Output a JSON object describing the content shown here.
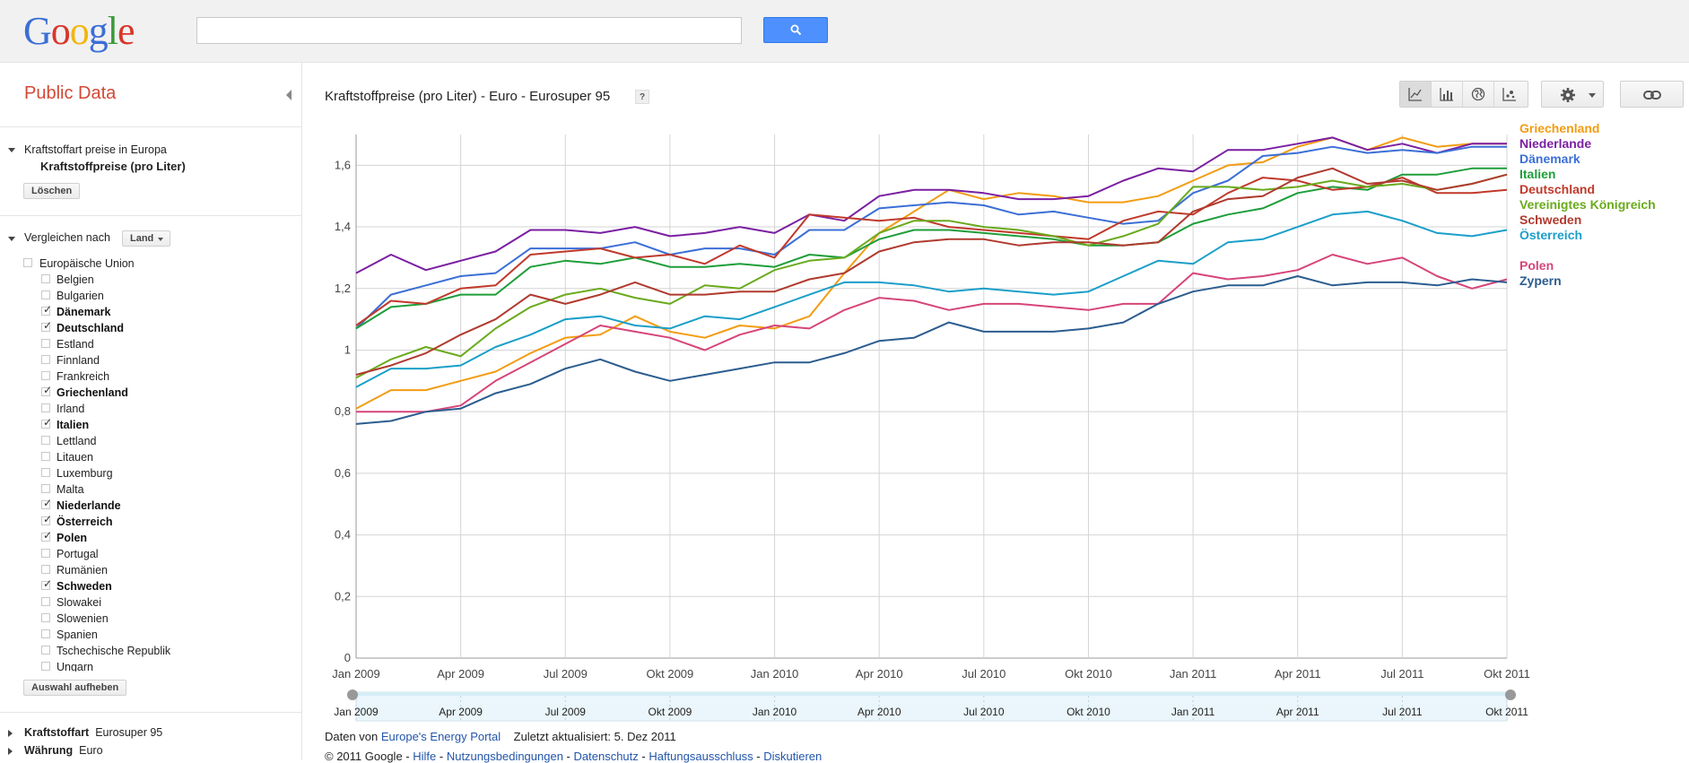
{
  "header": {
    "logo": [
      "G",
      "o",
      "o",
      "g",
      "l",
      "e"
    ],
    "search_value": ""
  },
  "sidebar": {
    "title": "Public Data",
    "dataset_heading": "Kraftstoffart preise in Europa",
    "dataset_metric": "Kraftstoffpreise (pro Liter)",
    "clear_button": "Löschen",
    "compare_label": "Vergleichen nach",
    "compare_dropdown": "Land",
    "countries": [
      {
        "name": "Europäische Union",
        "checked": false,
        "level": 0
      },
      {
        "name": "Belgien",
        "checked": false,
        "level": 1
      },
      {
        "name": "Bulgarien",
        "checked": false,
        "level": 1
      },
      {
        "name": "Dänemark",
        "checked": true,
        "level": 1
      },
      {
        "name": "Deutschland",
        "checked": true,
        "level": 1
      },
      {
        "name": "Estland",
        "checked": false,
        "level": 1
      },
      {
        "name": "Finnland",
        "checked": false,
        "level": 1
      },
      {
        "name": "Frankreich",
        "checked": false,
        "level": 1
      },
      {
        "name": "Griechenland",
        "checked": true,
        "level": 1
      },
      {
        "name": "Irland",
        "checked": false,
        "level": 1
      },
      {
        "name": "Italien",
        "checked": true,
        "level": 1
      },
      {
        "name": "Lettland",
        "checked": false,
        "level": 1
      },
      {
        "name": "Litauen",
        "checked": false,
        "level": 1
      },
      {
        "name": "Luxemburg",
        "checked": false,
        "level": 1
      },
      {
        "name": "Malta",
        "checked": false,
        "level": 1
      },
      {
        "name": "Niederlande",
        "checked": true,
        "level": 1
      },
      {
        "name": "Österreich",
        "checked": true,
        "level": 1
      },
      {
        "name": "Polen",
        "checked": true,
        "level": 1
      },
      {
        "name": "Portugal",
        "checked": false,
        "level": 1
      },
      {
        "name": "Rumänien",
        "checked": false,
        "level": 1
      },
      {
        "name": "Schweden",
        "checked": true,
        "level": 1
      },
      {
        "name": "Slowakei",
        "checked": false,
        "level": 1
      },
      {
        "name": "Slowenien",
        "checked": false,
        "level": 1
      },
      {
        "name": "Spanien",
        "checked": false,
        "level": 1
      },
      {
        "name": "Tschechische Republik",
        "checked": false,
        "level": 1
      },
      {
        "name": "Ungarn",
        "checked": false,
        "level": 1
      }
    ],
    "deselect_button": "Auswahl aufheben",
    "filters": [
      {
        "label": "Kraftstoffart",
        "value": "Eurosuper 95"
      },
      {
        "label": "Währung",
        "value": "Euro"
      }
    ]
  },
  "main": {
    "title": "Kraftstoffpreise (pro Liter) - Euro - Eurosuper 95",
    "help": "?",
    "view_icons": [
      "line-chart-icon",
      "bar-chart-icon",
      "map-icon",
      "bubble-chart-icon"
    ],
    "footer": {
      "source_prefix": "Daten von",
      "source_link": "Europe's Energy Portal",
      "updated": "Zuletzt aktualisiert: 5. Dez 2011",
      "copyright": "© 2011 Google -",
      "links": [
        "Hilfe",
        "Nutzungsbedingungen",
        "Datenschutz",
        "Haftungsausschluss",
        "Diskutieren"
      ]
    }
  },
  "chart_data": {
    "type": "line",
    "title": "Kraftstoffpreise (pro Liter) - Euro - Eurosuper 95",
    "x": [
      "Jan 2009",
      "Feb 2009",
      "Mär 2009",
      "Apr 2009",
      "Mai 2009",
      "Jun 2009",
      "Jul 2009",
      "Aug 2009",
      "Sep 2009",
      "Okt 2009",
      "Nov 2009",
      "Dez 2009",
      "Jan 2010",
      "Feb 2010",
      "Mär 2010",
      "Apr 2010",
      "Mai 2010",
      "Jun 2010",
      "Jul 2010",
      "Aug 2010",
      "Sep 2010",
      "Okt 2010",
      "Nov 2010",
      "Dez 2010",
      "Jan 2011",
      "Feb 2011",
      "Mär 2011",
      "Apr 2011",
      "Mai 2011",
      "Jun 2011",
      "Jul 2011",
      "Aug 2011",
      "Sep 2011",
      "Okt 2011"
    ],
    "x_tick_labels": [
      "Jan 2009",
      "Apr 2009",
      "Jul 2009",
      "Okt 2009",
      "Jan 2010",
      "Apr 2010",
      "Jul 2010",
      "Okt 2010",
      "Jan 2011",
      "Apr 2011",
      "Jul 2011",
      "Okt 2011"
    ],
    "y_tick_labels": [
      "0",
      "0,2",
      "0,4",
      "0,6",
      "0,8",
      "1",
      "1,2",
      "1,4",
      "1,6"
    ],
    "ylim": [
      0,
      1.7
    ],
    "grid": true,
    "legend_position": "right",
    "series": [
      {
        "name": "Griechenland",
        "color": "#f39c12",
        "values": [
          0.81,
          0.87,
          0.87,
          0.9,
          0.93,
          0.99,
          1.04,
          1.05,
          1.11,
          1.06,
          1.04,
          1.08,
          1.07,
          1.11,
          1.25,
          1.38,
          1.45,
          1.52,
          1.49,
          1.51,
          1.5,
          1.48,
          1.48,
          1.5,
          1.55,
          1.6,
          1.61,
          1.66,
          1.69,
          1.65,
          1.69,
          1.66,
          1.67,
          1.67
        ]
      },
      {
        "name": "Niederlande",
        "color": "#7b1fa2",
        "values": [
          1.25,
          1.31,
          1.26,
          1.29,
          1.32,
          1.39,
          1.39,
          1.38,
          1.4,
          1.37,
          1.38,
          1.4,
          1.38,
          1.44,
          1.42,
          1.5,
          1.52,
          1.52,
          1.51,
          1.49,
          1.49,
          1.5,
          1.55,
          1.59,
          1.58,
          1.65,
          1.65,
          1.67,
          1.69,
          1.65,
          1.67,
          1.64,
          1.67,
          1.67
        ]
      },
      {
        "name": "Dänemark",
        "color": "#3b6fd6",
        "values": [
          1.07,
          1.18,
          1.21,
          1.24,
          1.25,
          1.33,
          1.33,
          1.33,
          1.35,
          1.31,
          1.33,
          1.33,
          1.31,
          1.39,
          1.39,
          1.46,
          1.47,
          1.48,
          1.47,
          1.44,
          1.45,
          1.43,
          1.41,
          1.42,
          1.51,
          1.55,
          1.63,
          1.64,
          1.66,
          1.64,
          1.65,
          1.64,
          1.66,
          1.66
        ]
      },
      {
        "name": "Italien",
        "color": "#1e9e3a",
        "values": [
          1.07,
          1.14,
          1.15,
          1.18,
          1.18,
          1.27,
          1.29,
          1.28,
          1.3,
          1.27,
          1.27,
          1.28,
          1.27,
          1.31,
          1.3,
          1.36,
          1.39,
          1.39,
          1.38,
          1.37,
          1.36,
          1.34,
          1.34,
          1.35,
          1.41,
          1.44,
          1.46,
          1.51,
          1.53,
          1.52,
          1.57,
          1.57,
          1.59,
          1.59
        ]
      },
      {
        "name": "Deutschland",
        "color": "#c0392b",
        "values": [
          1.08,
          1.16,
          1.15,
          1.2,
          1.21,
          1.31,
          1.32,
          1.33,
          1.3,
          1.31,
          1.28,
          1.34,
          1.3,
          1.44,
          1.43,
          1.42,
          1.43,
          1.4,
          1.39,
          1.38,
          1.37,
          1.36,
          1.42,
          1.45,
          1.44,
          1.51,
          1.56,
          1.55,
          1.52,
          1.53,
          1.56,
          1.51,
          1.51,
          1.52
        ]
      },
      {
        "name": "Vereinigtes Königreich",
        "color": "#6aaa1c",
        "values": [
          0.91,
          0.97,
          1.01,
          0.98,
          1.07,
          1.14,
          1.18,
          1.2,
          1.17,
          1.15,
          1.21,
          1.2,
          1.26,
          1.29,
          1.3,
          1.38,
          1.42,
          1.42,
          1.4,
          1.39,
          1.37,
          1.34,
          1.37,
          1.41,
          1.53,
          1.53,
          1.52,
          1.53,
          1.55,
          1.53,
          1.54,
          1.52,
          1.54,
          1.57
        ]
      },
      {
        "name": "Schweden",
        "color": "#b03a2e",
        "values": [
          0.92,
          0.95,
          0.99,
          1.05,
          1.1,
          1.18,
          1.15,
          1.18,
          1.22,
          1.18,
          1.18,
          1.19,
          1.19,
          1.23,
          1.25,
          1.32,
          1.35,
          1.36,
          1.36,
          1.34,
          1.35,
          1.35,
          1.34,
          1.35,
          1.45,
          1.49,
          1.5,
          1.56,
          1.59,
          1.54,
          1.55,
          1.52,
          1.54,
          1.57
        ]
      },
      {
        "name": "Österreich",
        "color": "#1b9fc9",
        "values": [
          0.88,
          0.94,
          0.94,
          0.95,
          1.01,
          1.05,
          1.1,
          1.11,
          1.08,
          1.07,
          1.11,
          1.1,
          1.14,
          1.18,
          1.22,
          1.22,
          1.21,
          1.19,
          1.2,
          1.19,
          1.18,
          1.19,
          1.24,
          1.29,
          1.28,
          1.35,
          1.36,
          1.4,
          1.44,
          1.45,
          1.42,
          1.38,
          1.37,
          1.39
        ]
      },
      {
        "name": "Polen",
        "color": "#d6457a",
        "values": [
          0.8,
          0.8,
          0.8,
          0.82,
          0.9,
          0.96,
          1.02,
          1.08,
          1.06,
          1.04,
          1.0,
          1.05,
          1.08,
          1.07,
          1.13,
          1.17,
          1.16,
          1.13,
          1.15,
          1.15,
          1.14,
          1.13,
          1.15,
          1.15,
          1.25,
          1.23,
          1.24,
          1.26,
          1.31,
          1.28,
          1.3,
          1.24,
          1.2,
          1.23
        ]
      },
      {
        "name": "Zypern",
        "color": "#2c5d8f",
        "values": [
          0.76,
          0.77,
          0.8,
          0.81,
          0.86,
          0.89,
          0.94,
          0.97,
          0.93,
          0.9,
          0.92,
          0.94,
          0.96,
          0.96,
          0.99,
          1.03,
          1.04,
          1.09,
          1.06,
          1.06,
          1.06,
          1.07,
          1.09,
          1.15,
          1.19,
          1.21,
          1.21,
          1.24,
          1.21,
          1.22,
          1.22,
          1.21,
          1.23,
          1.22
        ]
      }
    ]
  }
}
